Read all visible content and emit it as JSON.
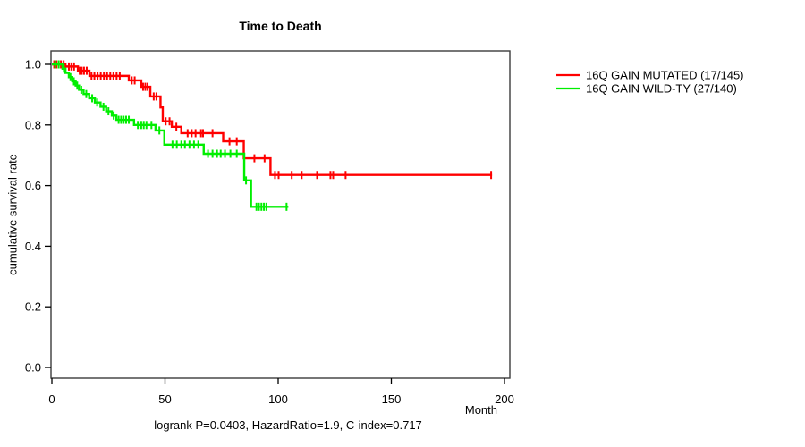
{
  "title": "Time to Death",
  "chart_data": {
    "type": "line",
    "subtype": "kaplan-meier-step",
    "title": "Time to Death",
    "xlabel": "Month",
    "ylabel": "cumulative survival rate",
    "xlim": [
      0,
      200
    ],
    "ylim": [
      0.0,
      1.0
    ],
    "xticks": [
      0,
      50,
      100,
      150,
      200
    ],
    "yticks": [
      0.0,
      0.2,
      0.4,
      0.6,
      0.8,
      1.0
    ],
    "grid": false,
    "legend_position": "right-outside",
    "annotation": "logrank P=0.0403, HazardRatio=1.9, C-index=0.717",
    "series": [
      {
        "key": "mutated",
        "name": "16Q GAIN MUTATED (17/145)",
        "color": "#ff0000",
        "start": [
          0,
          1.0
        ],
        "steps": [
          [
            6,
            0.993
          ],
          [
            11.5,
            0.979
          ],
          [
            16.6,
            0.962
          ],
          [
            34,
            0.947
          ],
          [
            39.5,
            0.926
          ],
          [
            43.5,
            0.894
          ],
          [
            48,
            0.858
          ],
          [
            49,
            0.812
          ],
          [
            53,
            0.794
          ],
          [
            57.2,
            0.773
          ],
          [
            75.7,
            0.746
          ],
          [
            84.8,
            0.69
          ],
          [
            96.6,
            0.635
          ]
        ],
        "end_x": 194.5,
        "censor_marks": [
          [
            1,
            1.0
          ],
          [
            2,
            1.0
          ],
          [
            3,
            1.0
          ],
          [
            4,
            1.0
          ],
          [
            5.2,
            1.0
          ],
          [
            7.5,
            0.993
          ],
          [
            8.6,
            0.993
          ],
          [
            9.8,
            0.993
          ],
          [
            12.3,
            0.979
          ],
          [
            13.2,
            0.979
          ],
          [
            14.2,
            0.979
          ],
          [
            15.4,
            0.979
          ],
          [
            17.5,
            0.962
          ],
          [
            18.8,
            0.962
          ],
          [
            20.2,
            0.962
          ],
          [
            21.6,
            0.962
          ],
          [
            23,
            0.962
          ],
          [
            24.4,
            0.962
          ],
          [
            25.8,
            0.962
          ],
          [
            27.2,
            0.962
          ],
          [
            28.6,
            0.962
          ],
          [
            30,
            0.962
          ],
          [
            35.3,
            0.947
          ],
          [
            36.6,
            0.947
          ],
          [
            40.3,
            0.926
          ],
          [
            41.3,
            0.926
          ],
          [
            42.3,
            0.926
          ],
          [
            45,
            0.894
          ],
          [
            46.2,
            0.894
          ],
          [
            50.3,
            0.812
          ],
          [
            52,
            0.812
          ],
          [
            55,
            0.794
          ],
          [
            60,
            0.773
          ],
          [
            61.8,
            0.773
          ],
          [
            63.5,
            0.773
          ],
          [
            65.9,
            0.773
          ],
          [
            66.8,
            0.773
          ],
          [
            71,
            0.773
          ],
          [
            78.5,
            0.746
          ],
          [
            81.7,
            0.746
          ],
          [
            89.5,
            0.69
          ],
          [
            94,
            0.69
          ],
          [
            98.6,
            0.635
          ],
          [
            100.2,
            0.635
          ],
          [
            106,
            0.635
          ],
          [
            110.4,
            0.635
          ],
          [
            117.2,
            0.635
          ],
          [
            123.1,
            0.635
          ],
          [
            124.3,
            0.635
          ],
          [
            129.8,
            0.635
          ],
          [
            194.1,
            0.635
          ]
        ]
      },
      {
        "key": "wildtype",
        "name": "16Q GAIN WILD-TY (27/140)",
        "color": "#00ee00",
        "start": [
          0,
          1.0
        ],
        "steps": [
          [
            4.7,
            0.986
          ],
          [
            6,
            0.972
          ],
          [
            7.5,
            0.958
          ],
          [
            9,
            0.944
          ],
          [
            10.5,
            0.93
          ],
          [
            12,
            0.916
          ],
          [
            14,
            0.902
          ],
          [
            16.5,
            0.888
          ],
          [
            19,
            0.874
          ],
          [
            21.5,
            0.86
          ],
          [
            24,
            0.845
          ],
          [
            26.5,
            0.831
          ],
          [
            28.5,
            0.817
          ],
          [
            36.3,
            0.8
          ],
          [
            45.8,
            0.782
          ],
          [
            49.7,
            0.735
          ],
          [
            67.1,
            0.705
          ],
          [
            85,
            0.617
          ],
          [
            88,
            0.53
          ]
        ],
        "end_x": 104.5,
        "censor_marks": [
          [
            1.5,
            1.0
          ],
          [
            3,
            1.0
          ],
          [
            5.3,
            0.986
          ],
          [
            8.2,
            0.958
          ],
          [
            9.7,
            0.944
          ],
          [
            11.2,
            0.93
          ],
          [
            13,
            0.916
          ],
          [
            15.2,
            0.902
          ],
          [
            17.8,
            0.888
          ],
          [
            20,
            0.874
          ],
          [
            22.8,
            0.86
          ],
          [
            25,
            0.845
          ],
          [
            27.3,
            0.831
          ],
          [
            29.5,
            0.817
          ],
          [
            30.6,
            0.817
          ],
          [
            31.7,
            0.817
          ],
          [
            32.8,
            0.817
          ],
          [
            34,
            0.817
          ],
          [
            38,
            0.8
          ],
          [
            39.5,
            0.8
          ],
          [
            40.6,
            0.8
          ],
          [
            41.8,
            0.8
          ],
          [
            44,
            0.8
          ],
          [
            47.5,
            0.782
          ],
          [
            53.3,
            0.735
          ],
          [
            55.2,
            0.735
          ],
          [
            57.2,
            0.735
          ],
          [
            58.8,
            0.735
          ],
          [
            60.8,
            0.735
          ],
          [
            62.8,
            0.735
          ],
          [
            64.7,
            0.735
          ],
          [
            69,
            0.705
          ],
          [
            71,
            0.705
          ],
          [
            73,
            0.705
          ],
          [
            74.6,
            0.705
          ],
          [
            76.5,
            0.705
          ],
          [
            78.9,
            0.705
          ],
          [
            81.7,
            0.705
          ],
          [
            85.8,
            0.617
          ],
          [
            90.4,
            0.53
          ],
          [
            91.5,
            0.53
          ],
          [
            92.6,
            0.53
          ],
          [
            93.7,
            0.53
          ],
          [
            94.8,
            0.53
          ],
          [
            103.7,
            0.53
          ]
        ]
      }
    ]
  },
  "colors": {
    "box_border": "#3c3c3c",
    "axis": "#000000",
    "background": "#ffffff"
  }
}
